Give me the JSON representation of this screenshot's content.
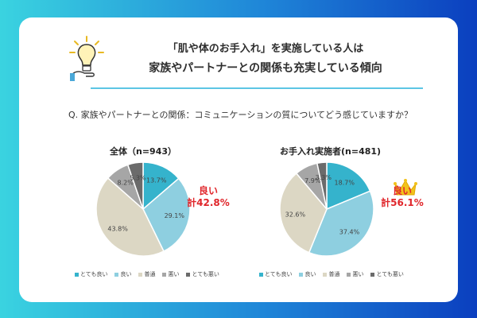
{
  "title": {
    "line1": "「肌や体のお手入れ」を実施している人は",
    "line2": "家族やパートナーとの関係も充実している傾向"
  },
  "question": "Q. 家族やパートナーとの関係：コミュニケーションの質についてどう感じていますか？",
  "categories": [
    "とても良い",
    "良い",
    "普通",
    "悪い",
    "とても悪い"
  ],
  "colors": [
    "#35b3cc",
    "#8ecfe0",
    "#dcd7c4",
    "#a6a6a6",
    "#6b6b6b"
  ],
  "icons": {
    "bulb": "lightbulb-hand-icon",
    "crown": "crown-icon"
  },
  "chart_data": [
    {
      "type": "pie",
      "title": "全体（n=943）",
      "categories": [
        "とても良い",
        "良い",
        "普通",
        "悪い",
        "とても悪い"
      ],
      "values": [
        13.7,
        29.1,
        43.8,
        8.2,
        5.3
      ],
      "labels": [
        "13.7%",
        "29.1%",
        "43.8%",
        "8.2%",
        "5.3%"
      ],
      "annotation": {
        "line1": "良い",
        "line2": "計42.8%"
      }
    },
    {
      "type": "pie",
      "title": "お手入れ実施者(n=481)",
      "categories": [
        "とても良い",
        "良い",
        "普通",
        "悪い",
        "とても悪い"
      ],
      "values": [
        18.7,
        37.4,
        32.6,
        7.9,
        3.3
      ],
      "labels": [
        "18.7%",
        "37.4%",
        "32.6%",
        "7.9%",
        "3.3%"
      ],
      "annotation": {
        "line1": "良い",
        "line2": "計56.1%"
      }
    }
  ]
}
